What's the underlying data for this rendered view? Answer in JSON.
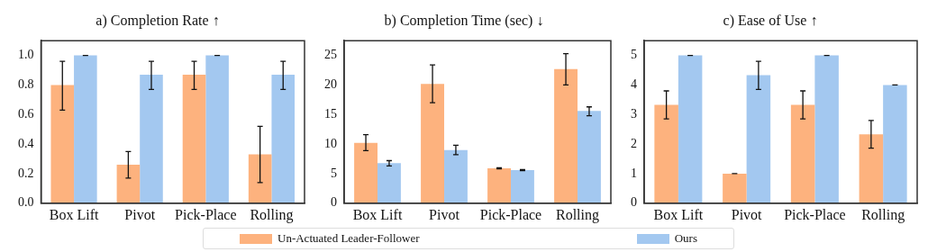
{
  "chart_data": [
    {
      "type": "bar",
      "title": "a) Completion Rate ↑",
      "categories": [
        "Box Lift",
        "Pivot",
        "Pick-Place",
        "Rolling"
      ],
      "ylim": [
        0,
        1.1
      ],
      "yticks": [
        {
          "value": 0,
          "label": "0.0"
        },
        {
          "value": 0.2,
          "label": "0.2"
        },
        {
          "value": 0.4,
          "label": "0.4"
        },
        {
          "value": 0.6,
          "label": "0.6"
        },
        {
          "value": 0.8,
          "label": "0.8"
        },
        {
          "value": 1,
          "label": "1.0"
        }
      ],
      "grid": false,
      "legend": "bottom",
      "series": [
        {
          "name": "Un-Actuated Leader-Follower",
          "color": "#fdb27e",
          "values": [
            0.8,
            0.26,
            0.87,
            0.33
          ],
          "errors": [
            [
              0.63,
              0.96
            ],
            [
              0.17,
              0.35
            ],
            [
              0.77,
              0.96
            ],
            [
              0.14,
              0.52
            ]
          ]
        },
        {
          "name": "Ours",
          "color": "#a3c8f0",
          "values": [
            1.0,
            0.87,
            1.0,
            0.87
          ],
          "errors": [
            0,
            [
              0.77,
              0.96
            ],
            0,
            [
              0.77,
              0.96
            ]
          ]
        }
      ]
    },
    {
      "type": "bar",
      "title": "b) Completion Time (sec) ↓",
      "categories": [
        "Box Lift",
        "Pivot",
        "Pick-Place",
        "Rolling"
      ],
      "ylim": [
        0,
        27.5
      ],
      "yticks": [
        0,
        5,
        10,
        15,
        20,
        25
      ],
      "grid": false,
      "series": [
        {
          "color": "#fdb27e",
          "values": [
            10.2,
            20.2,
            5.9,
            22.7
          ],
          "errors": [
            [
              8.9,
              11.6
            ],
            [
              17.0,
              23.4
            ],
            [
              5.8,
              6.0
            ],
            [
              20.0,
              25.3
            ]
          ]
        },
        {
          "color": "#a3c8f0",
          "values": [
            6.8,
            9.0,
            5.6,
            15.6
          ],
          "errors": [
            [
              6.3,
              7.2
            ],
            [
              8.2,
              9.8
            ],
            [
              5.5,
              5.7
            ],
            [
              14.8,
              16.3
            ]
          ]
        }
      ]
    },
    {
      "type": "bar",
      "title": "c) Ease of Use ↑",
      "categories": [
        "Box Lift",
        "Pivot",
        "Pick-Place",
        "Rolling"
      ],
      "ylim": [
        0,
        5.5
      ],
      "yticks": [
        0,
        1,
        2,
        3,
        4,
        5
      ],
      "grid": false,
      "series": [
        {
          "color": "#fdb27e",
          "values": [
            3.33,
            1.0,
            3.33,
            2.33
          ],
          "errors": [
            [
              2.85,
              3.8
            ],
            0,
            [
              2.85,
              3.8
            ],
            [
              1.86,
              2.8
            ]
          ]
        },
        {
          "color": "#a3c8f0",
          "values": [
            5.0,
            4.33,
            5.0,
            4.0
          ],
          "errors": [
            0,
            [
              3.85,
              4.8
            ],
            0,
            0
          ]
        }
      ]
    }
  ]
}
